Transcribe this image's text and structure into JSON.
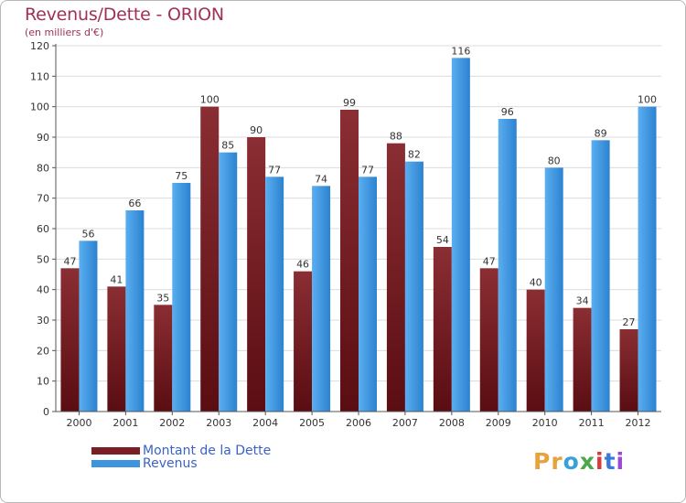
{
  "header": {
    "title": "Revenus/Dette - ORION",
    "subtitle": "(en milliers d'€)"
  },
  "legend": {
    "debt_label": "Montant de la Dette",
    "revenue_label": "Revenus"
  },
  "logo": {
    "text": "Proxiti",
    "letters": [
      "P",
      "r",
      "o",
      "x",
      "i",
      "t",
      "i"
    ],
    "colors": [
      "#e8a23a",
      "#e8a23a",
      "#3aa0d8",
      "#4aa84a",
      "#d83a3a",
      "#3a7ad8",
      "#9a4ad8"
    ]
  },
  "colors": {
    "debt": "#7a1f25",
    "revenue": "#3d95e0",
    "title": "#a0305a"
  },
  "chart_data": {
    "type": "bar",
    "title": "Revenus/Dette - ORION",
    "subtitle": "(en milliers d'€)",
    "categories": [
      "2000",
      "2001",
      "2002",
      "2003",
      "2004",
      "2005",
      "2006",
      "2007",
      "2008",
      "2009",
      "2010",
      "2011",
      "2012"
    ],
    "series": [
      {
        "name": "Montant de la Dette",
        "values": [
          47,
          41,
          35,
          100,
          90,
          46,
          99,
          88,
          54,
          47,
          40,
          34,
          27
        ]
      },
      {
        "name": "Revenus",
        "values": [
          56,
          66,
          75,
          85,
          77,
          74,
          77,
          82,
          116,
          96,
          80,
          89,
          100
        ]
      }
    ],
    "ylim": [
      0,
      120
    ],
    "yticks": [
      0,
      10,
      20,
      30,
      40,
      50,
      60,
      70,
      80,
      90,
      100,
      110,
      120
    ],
    "grid": true,
    "legend_position": "bottom-left"
  }
}
